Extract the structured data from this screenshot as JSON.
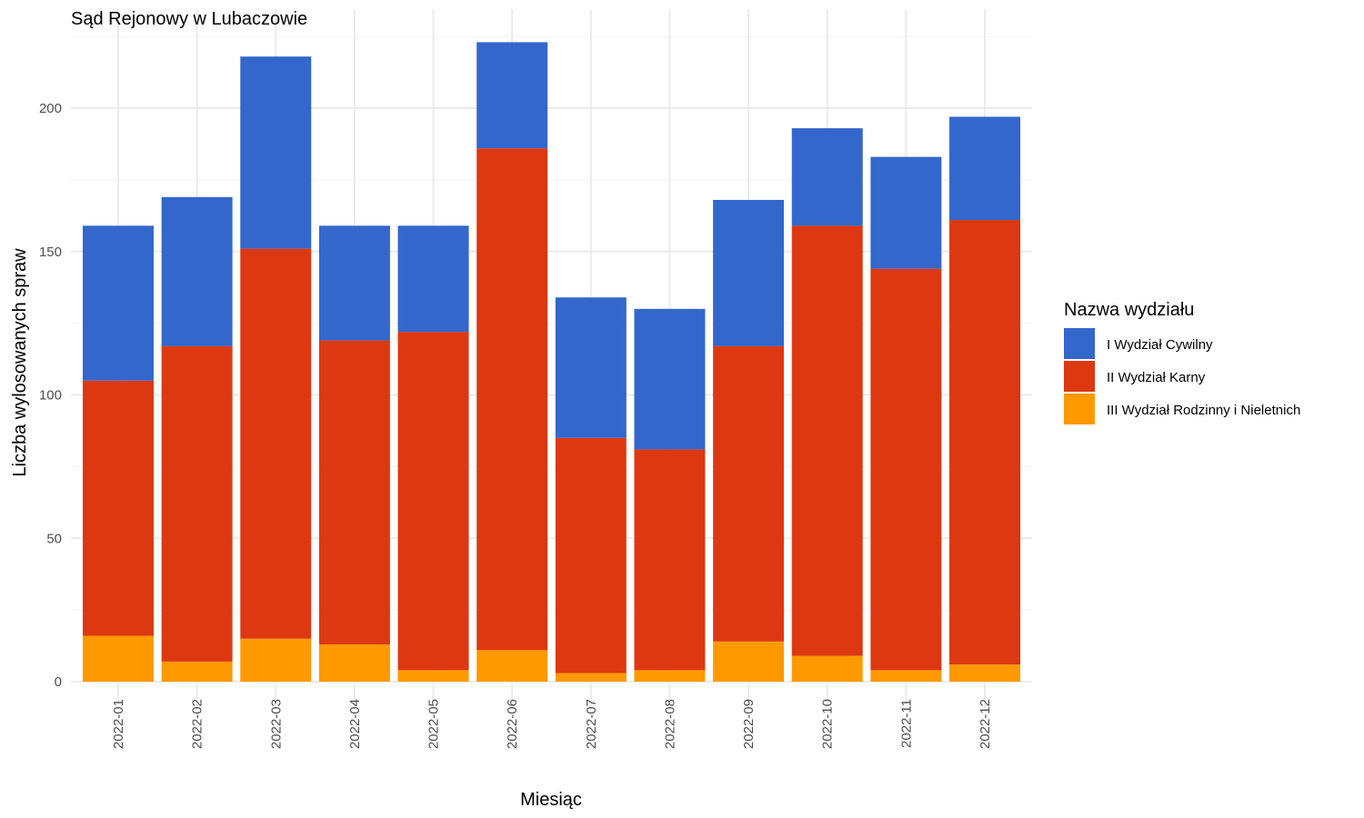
{
  "chart_data": {
    "type": "bar",
    "stacked": true,
    "title": "Sąd Rejonowy w Lubaczowie",
    "xlabel": "Miesiąc",
    "ylabel": "Liczba wylosowanych spraw",
    "ylim": [
      0,
      230
    ],
    "yticks": [
      0,
      50,
      100,
      150,
      200
    ],
    "grid": true,
    "legend_position": "right",
    "legend_title": "Nazwa wydziału",
    "categories": [
      "2022-01",
      "2022-02",
      "2022-03",
      "2022-04",
      "2022-05",
      "2022-06",
      "2022-07",
      "2022-08",
      "2022-09",
      "2022-10",
      "2022-11",
      "2022-12"
    ],
    "series": [
      {
        "name": "I Wydział Cywilny",
        "color": "#3367cc",
        "values": [
          54,
          52,
          67,
          40,
          37,
          37,
          49,
          49,
          51,
          34,
          39,
          36
        ]
      },
      {
        "name": "II Wydział Karny",
        "color": "#dc3912",
        "values": [
          89,
          110,
          136,
          106,
          118,
          175,
          82,
          77,
          103,
          150,
          140,
          155
        ]
      },
      {
        "name": "III Wydział Rodzinny i Nieletnich",
        "color": "#ff9900",
        "values": [
          16,
          7,
          15,
          13,
          4,
          11,
          3,
          4,
          14,
          9,
          4,
          6
        ]
      }
    ]
  }
}
